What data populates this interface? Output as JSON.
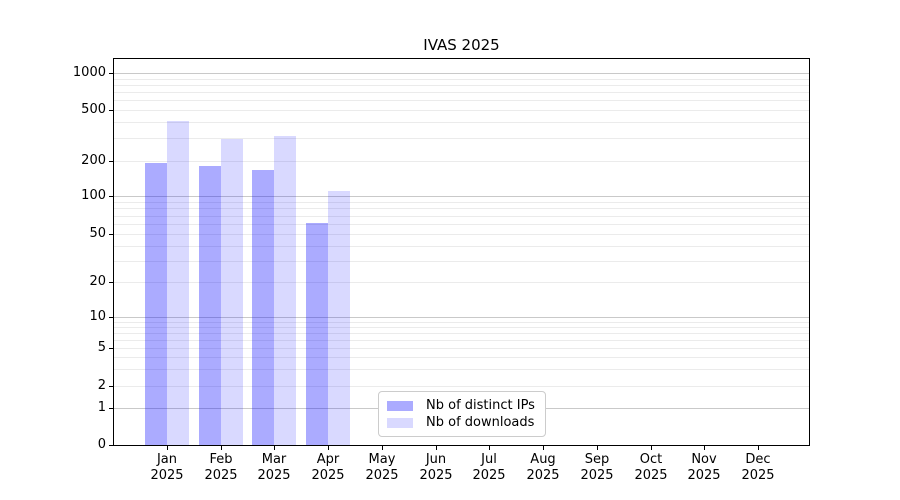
{
  "title": "IVAS 2025",
  "chart_data": {
    "type": "bar",
    "title": "IVAS 2025",
    "x_months": [
      "Jan",
      "Feb",
      "Mar",
      "Apr",
      "May",
      "Jun",
      "Jul",
      "Aug",
      "Sep",
      "Oct",
      "Nov",
      "Dec"
    ],
    "x_year": "2025",
    "series": [
      {
        "name": "Nb of distinct IPs",
        "values": [
          195,
          185,
          170,
          62,
          null,
          null,
          null,
          null,
          null,
          null,
          null,
          null
        ],
        "color": "rgba(0,0,255,0.33)",
        "color_hex": "#aaaaf5"
      },
      {
        "name": "Nb of downloads",
        "values": [
          420,
          305,
          320,
          113,
          null,
          null,
          null,
          null,
          null,
          null,
          null,
          null
        ],
        "color": "rgba(0,0,255,0.15)",
        "color_hex": "#d9d9f9"
      }
    ],
    "yscale": "symlog",
    "y_ticks": [
      0,
      1,
      2,
      5,
      10,
      20,
      50,
      100,
      200,
      500,
      1000
    ],
    "ylim": [
      0,
      1300
    ],
    "grid": true,
    "legend_position": "lower center"
  },
  "colors": {
    "grid_major": "#c9c9c9",
    "grid_minor": "#ebebeb",
    "axis": "#000000",
    "text": "#000000",
    "legend_border": "#cccccc",
    "background": "#ffffff"
  }
}
